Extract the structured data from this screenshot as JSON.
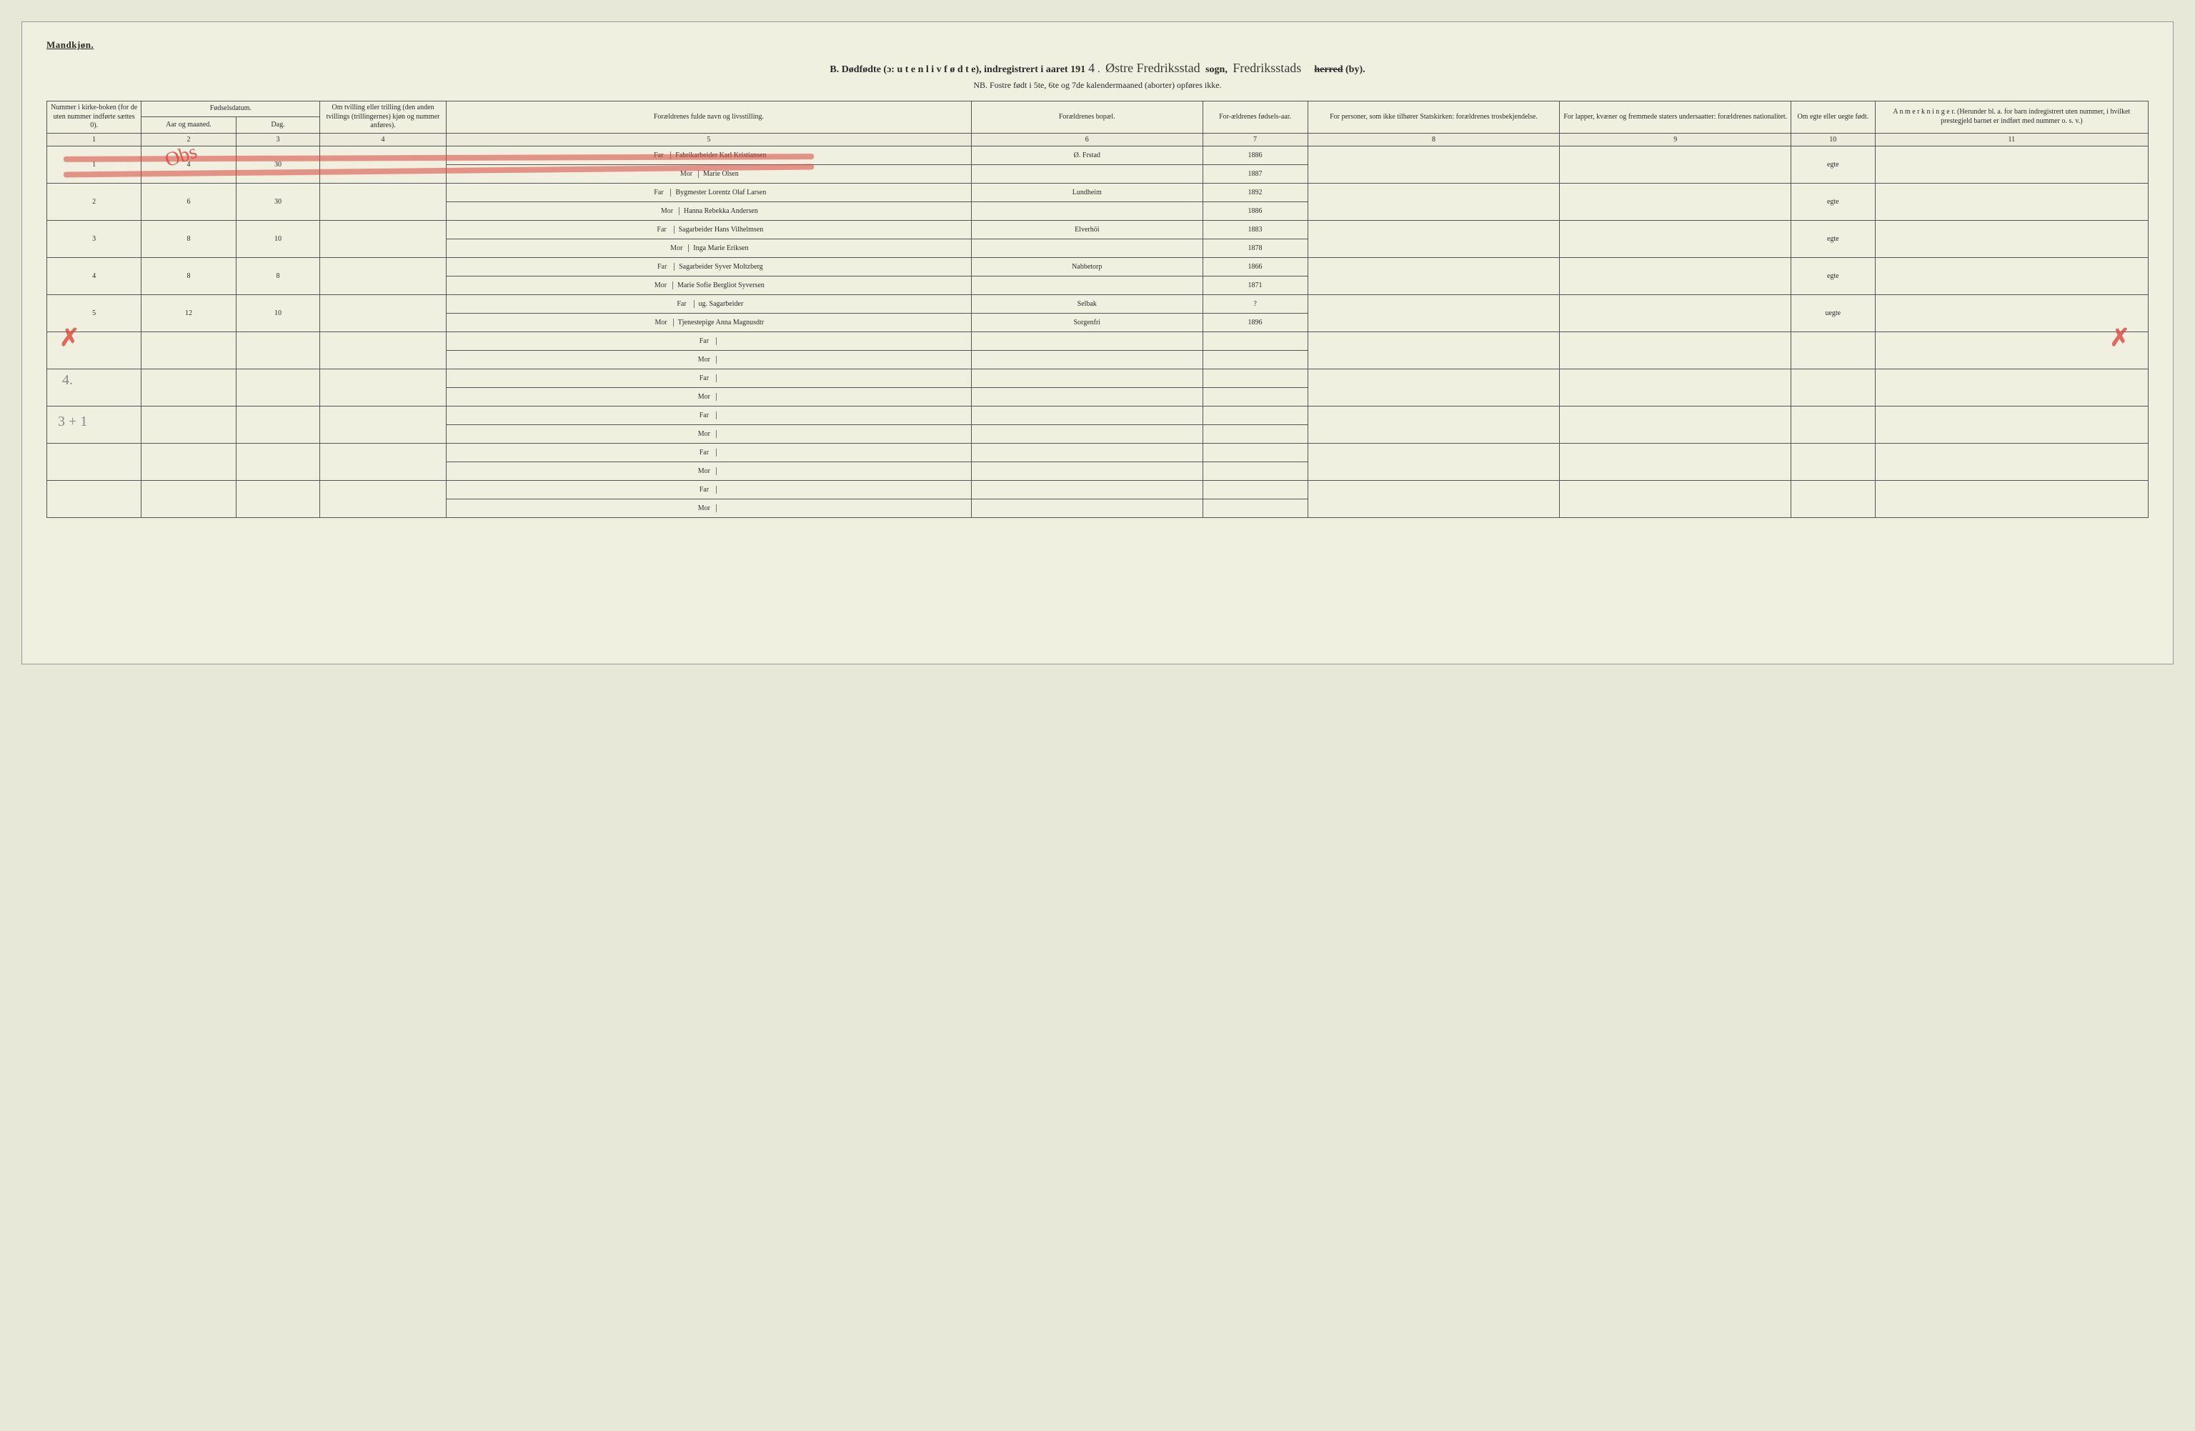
{
  "header": {
    "gender_label": "Mandkjøn.",
    "title_prefix": "B.  Dødfødte (ɔ: u t e n  l i v  f ø d t e), indregistrert i aaret 191",
    "year_digit": "4",
    "sogn_label": " sogn, ",
    "sogn_value": "Østre Fredriksstad",
    "herred_value": "Fredriksstads",
    "herred_strike": "herred",
    "by_label": " (by).",
    "nb_line": "NB.  Fostre født i 5te, 6te og 7de kalendermaaned (aborter) opføres ikke."
  },
  "columns": {
    "c1": "Nummer i kirke-boken (for de uten nummer indførte sættes 0).",
    "c2_top": "Fødselsdatum.",
    "c2a": "Aar og maaned.",
    "c2b": "Dag.",
    "c4": "Om tvilling eller trilling (den anden tvillings (trillingernes) kjøn og nummer anføres).",
    "c5": "Forældrenes fulde navn og livsstilling.",
    "c6": "Forældrenes bopæl.",
    "c7": "For-ældrenes fødsels-aar.",
    "c8": "For personer, som ikke tilhører Statskirken: forældrenes trosbekjendelse.",
    "c9": "For lapper, kvæner og fremmede staters undersaatter: forældrenes nationalitet.",
    "c10": "Om egte eller uegte født.",
    "c11": "A n m e r k n i n g e r.\n(Herunder bl. a. for barn indregistrert uten nummer, i hvilket prestegjeld barnet er indført med nummer o. s. v.)"
  },
  "colnums": [
    "1",
    "2",
    "3",
    "4",
    "5",
    "6",
    "7",
    "8",
    "9",
    "10",
    "11"
  ],
  "farmor": {
    "far": "Far",
    "mor": "Mor"
  },
  "rows": [
    {
      "num": "1",
      "month": "4",
      "day": "30",
      "twin": "",
      "far": "Fabrikarbeider Karl Kristiansen",
      "mor": "Marie Olsen",
      "bopal_far": "Ø. Frstad",
      "bopal_mor": "",
      "yr_far": "1886",
      "yr_mor": "1887",
      "col8": "",
      "col9": "",
      "egte": "egte",
      "anm": ""
    },
    {
      "num": "2",
      "month": "6",
      "day": "30",
      "twin": "",
      "far": "Bygmester Lorentz Olaf Larsen",
      "mor": "Hanna Rebekka Andersen",
      "bopal_far": "Lundheim",
      "bopal_mor": "",
      "yr_far": "1892",
      "yr_mor": "1886",
      "col8": "",
      "col9": "",
      "egte": "egte",
      "anm": ""
    },
    {
      "num": "3",
      "month": "8",
      "day": "10",
      "twin": "",
      "far": "Sagarbeider Hans Vilhelmsen",
      "mor": "Inga Marie Eriksen",
      "bopal_far": "Elverhöi",
      "bopal_mor": "",
      "yr_far": "1883",
      "yr_mor": "1878",
      "col8": "",
      "col9": "",
      "egte": "egte",
      "anm": ""
    },
    {
      "num": "4",
      "month": "8",
      "day": "8",
      "twin": "",
      "far": "Sagarbeider Syver Moltzberg",
      "mor": "Marie Sofie Bergliot Syversen",
      "bopal_far": "Nabbetorp",
      "bopal_mor": "",
      "yr_far": "1866",
      "yr_mor": "1871",
      "col8": "",
      "col9": "",
      "egte": "egte",
      "anm": ""
    },
    {
      "num": "5",
      "month": "12",
      "day": "10",
      "twin": "",
      "far": "ug. Sagarbeider",
      "mor": "Tjenestepige Anna Magnusdtr",
      "bopal_far": "Selbak",
      "bopal_mor": "Sorgenfri",
      "yr_far": "?",
      "yr_mor": "1896",
      "col8": "",
      "col9": "",
      "egte": "uegte",
      "anm": ""
    },
    {
      "num": "",
      "month": "",
      "day": "",
      "twin": "",
      "far": "",
      "mor": "",
      "bopal_far": "",
      "bopal_mor": "",
      "yr_far": "",
      "yr_mor": "",
      "col8": "",
      "col9": "",
      "egte": "",
      "anm": ""
    },
    {
      "num": "",
      "month": "",
      "day": "",
      "twin": "",
      "far": "",
      "mor": "",
      "bopal_far": "",
      "bopal_mor": "",
      "yr_far": "",
      "yr_mor": "",
      "col8": "",
      "col9": "",
      "egte": "",
      "anm": ""
    },
    {
      "num": "",
      "month": "",
      "day": "",
      "twin": "",
      "far": "",
      "mor": "",
      "bopal_far": "",
      "bopal_mor": "",
      "yr_far": "",
      "yr_mor": "",
      "col8": "",
      "col9": "",
      "egte": "",
      "anm": ""
    },
    {
      "num": "",
      "month": "",
      "day": "",
      "twin": "",
      "far": "",
      "mor": "",
      "bopal_far": "",
      "bopal_mor": "",
      "yr_far": "",
      "yr_mor": "",
      "col8": "",
      "col9": "",
      "egte": "",
      "anm": ""
    },
    {
      "num": "",
      "month": "",
      "day": "",
      "twin": "",
      "far": "",
      "mor": "",
      "bopal_far": "",
      "bopal_mor": "",
      "yr_far": "",
      "yr_mor": "",
      "col8": "",
      "col9": "",
      "egte": "",
      "anm": ""
    }
  ],
  "marks": {
    "obs": "Obs",
    "pencil1": "4.",
    "pencil2": "3 + 1"
  },
  "colors": {
    "paper": "#f0f0e0",
    "ink": "#2a2a2a",
    "rule": "#555555",
    "red": "rgba(220,70,60,0.7)"
  }
}
